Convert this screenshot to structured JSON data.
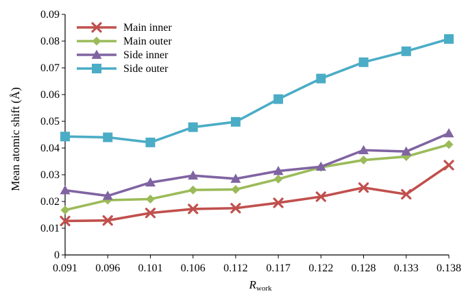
{
  "chart_data": {
    "type": "line",
    "title": "",
    "ylabel": "Mean atomic shift (Å)",
    "xlabel_main": "R",
    "xlabel_sub": "work",
    "categories": [
      "0.091",
      "0.096",
      "0.101",
      "0.106",
      "0.112",
      "0.117",
      "0.122",
      "0.128",
      "0.133",
      "0.138"
    ],
    "ylim": [
      0,
      0.09
    ],
    "yticks": [
      0,
      0.01,
      0.02,
      0.03,
      0.04,
      0.05,
      0.06,
      0.07,
      0.08,
      0.09
    ],
    "ytick_labels": [
      "0",
      "0.01",
      "0.02",
      "0.03",
      "0.04",
      "0.05",
      "0.06",
      "0.07",
      "0.08",
      "0.09"
    ],
    "grid": false,
    "legend_position": "top-left",
    "series": [
      {
        "name": "Main inner",
        "color": "#c0504d",
        "marker": "x",
        "values": [
          0.0127,
          0.0129,
          0.0157,
          0.0172,
          0.0175,
          0.0195,
          0.0218,
          0.0252,
          0.0227,
          0.0336
        ]
      },
      {
        "name": "Main outer",
        "color": "#9bbb59",
        "marker": "diamond",
        "values": [
          0.0168,
          0.0205,
          0.0209,
          0.0243,
          0.0245,
          0.0284,
          0.0328,
          0.0355,
          0.0368,
          0.0413
        ]
      },
      {
        "name": "Side inner",
        "color": "#8064a2",
        "marker": "triangle",
        "values": [
          0.0242,
          0.0221,
          0.0271,
          0.0297,
          0.0285,
          0.0314,
          0.033,
          0.0392,
          0.0387,
          0.0455
        ]
      },
      {
        "name": "Side outer",
        "color": "#4bacc6",
        "marker": "square",
        "values": [
          0.0443,
          0.044,
          0.0421,
          0.0478,
          0.0498,
          0.0583,
          0.066,
          0.0721,
          0.0762,
          0.0808
        ]
      }
    ]
  }
}
